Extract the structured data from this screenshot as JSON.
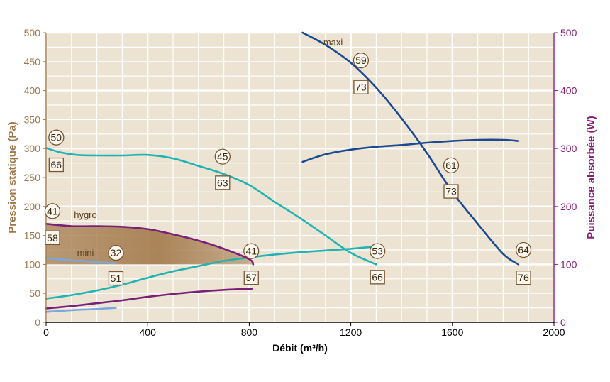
{
  "chart_data": {
    "type": "line",
    "xlabel": "Débit (m³/h)",
    "ylabel_left": "Pression statique (Pa)",
    "ylabel_right": "Puissance absorbée (W)",
    "xlim": [
      0,
      2000
    ],
    "ylim_left": [
      0,
      500
    ],
    "ylim_right": [
      0,
      500
    ],
    "x_ticks": [
      "0",
      "400",
      "800",
      "1200",
      "1600",
      "2000"
    ],
    "y_left_ticks": [
      "0",
      "50",
      "100",
      "150",
      "200",
      "250",
      "300",
      "350",
      "400",
      "450",
      "500"
    ],
    "y_right_ticks": [
      "0",
      "100",
      "200",
      "300",
      "400",
      "500"
    ],
    "grid": true,
    "colors": {
      "plot_bg": "#ece3d2",
      "grid": "#ffffff",
      "left_axis": "#a0784a",
      "right_axis": "#8a1f78",
      "maxi": "#1a4a94",
      "mid": "#1fb3b3",
      "hygro": "#7a1f7a",
      "mini": "#7aa7dd",
      "zone": "#a77f52",
      "badge": "#7a5530"
    },
    "series": [
      {
        "name": "maxi",
        "axis": "left",
        "color_key": "maxi",
        "points": [
          [
            1010,
            500
          ],
          [
            1100,
            479
          ],
          [
            1200,
            448
          ],
          [
            1300,
            405
          ],
          [
            1400,
            352
          ],
          [
            1500,
            292
          ],
          [
            1600,
            225
          ],
          [
            1700,
            170
          ],
          [
            1800,
            118
          ],
          [
            1860,
            100
          ]
        ]
      },
      {
        "axis": "right",
        "color_key": "maxi",
        "points": [
          [
            1010,
            277
          ],
          [
            1100,
            290
          ],
          [
            1200,
            298
          ],
          [
            1300,
            303
          ],
          [
            1400,
            306
          ],
          [
            1500,
            310
          ],
          [
            1600,
            313
          ],
          [
            1700,
            315
          ],
          [
            1800,
            315
          ],
          [
            1860,
            313
          ]
        ]
      },
      {
        "axis": "left",
        "color_key": "mid",
        "points": [
          [
            0,
            301
          ],
          [
            60,
            293
          ],
          [
            120,
            289
          ],
          [
            200,
            288
          ],
          [
            300,
            288
          ],
          [
            400,
            289
          ],
          [
            500,
            283
          ],
          [
            600,
            270
          ],
          [
            700,
            256
          ],
          [
            800,
            237
          ],
          [
            900,
            208
          ],
          [
            1000,
            180
          ],
          [
            1100,
            150
          ],
          [
            1200,
            120
          ],
          [
            1300,
            100
          ]
        ]
      },
      {
        "axis": "right",
        "color_key": "mid",
        "points": [
          [
            0,
            41
          ],
          [
            100,
            47
          ],
          [
            200,
            55
          ],
          [
            300,
            65
          ],
          [
            400,
            77
          ],
          [
            500,
            88
          ],
          [
            600,
            97
          ],
          [
            700,
            106
          ],
          [
            800,
            112
          ],
          [
            900,
            117
          ],
          [
            1000,
            121
          ],
          [
            1100,
            124
          ],
          [
            1200,
            127
          ],
          [
            1300,
            131
          ]
        ]
      },
      {
        "name": "hygro",
        "axis": "left",
        "color_key": "hygro",
        "points": [
          [
            0,
            170
          ],
          [
            100,
            166
          ],
          [
            200,
            166
          ],
          [
            300,
            165
          ],
          [
            400,
            161
          ],
          [
            500,
            152
          ],
          [
            600,
            141
          ],
          [
            700,
            127
          ],
          [
            800,
            109
          ],
          [
            815,
            100
          ]
        ]
      },
      {
        "axis": "right",
        "color_key": "hygro",
        "points": [
          [
            0,
            24
          ],
          [
            100,
            28
          ],
          [
            200,
            33
          ],
          [
            300,
            38
          ],
          [
            400,
            44
          ],
          [
            500,
            49
          ],
          [
            600,
            53
          ],
          [
            700,
            56
          ],
          [
            810,
            58
          ]
        ]
      },
      {
        "name": "mini",
        "axis": "left",
        "color_key": "mini",
        "points": [
          [
            0,
            111
          ],
          [
            100,
            107
          ],
          [
            200,
            104
          ],
          [
            275,
            102
          ]
        ]
      },
      {
        "axis": "right",
        "color_key": "mini",
        "points": [
          [
            0,
            18
          ],
          [
            100,
            21
          ],
          [
            200,
            23
          ],
          [
            275,
            25
          ]
        ]
      }
    ],
    "zone": {
      "upper_series": 4,
      "floor": 100,
      "x_from": 0
    },
    "annotations": [
      {
        "text": "50",
        "shape": "circle",
        "x": 40,
        "y": 319
      },
      {
        "text": "66",
        "shape": "box",
        "x": 40,
        "y": 272
      },
      {
        "text": "45",
        "shape": "circle",
        "x": 695,
        "y": 286
      },
      {
        "text": "63",
        "shape": "box",
        "x": 695,
        "y": 241
      },
      {
        "text": "59",
        "shape": "circle",
        "x": 1240,
        "y": 452
      },
      {
        "text": "73",
        "shape": "box",
        "x": 1240,
        "y": 406
      },
      {
        "text": "61",
        "shape": "circle",
        "x": 1595,
        "y": 271
      },
      {
        "text": "73",
        "shape": "box",
        "x": 1595,
        "y": 226
      },
      {
        "text": "53",
        "shape": "circle",
        "x": 1305,
        "y": 123
      },
      {
        "text": "66",
        "shape": "box",
        "x": 1305,
        "y": 78
      },
      {
        "text": "64",
        "shape": "circle",
        "x": 1880,
        "y": 125
      },
      {
        "text": "76",
        "shape": "box",
        "x": 1880,
        "y": 77
      },
      {
        "text": "41",
        "shape": "circle",
        "x": 25,
        "y": 192
      },
      {
        "text": "58",
        "shape": "box",
        "x": 25,
        "y": 146
      },
      {
        "text": "41",
        "shape": "circle",
        "x": 808,
        "y": 123
      },
      {
        "text": "57",
        "shape": "box",
        "x": 808,
        "y": 77
      },
      {
        "text": "32",
        "shape": "circle",
        "x": 275,
        "y": 120
      },
      {
        "text": "51",
        "shape": "box",
        "x": 275,
        "y": 76
      }
    ],
    "labels": [
      {
        "text": "maxi",
        "x": 1130,
        "y": 483
      },
      {
        "text": "hygro",
        "x": 155,
        "y": 185
      },
      {
        "text": "mini",
        "x": 155,
        "y": 120
      }
    ]
  }
}
